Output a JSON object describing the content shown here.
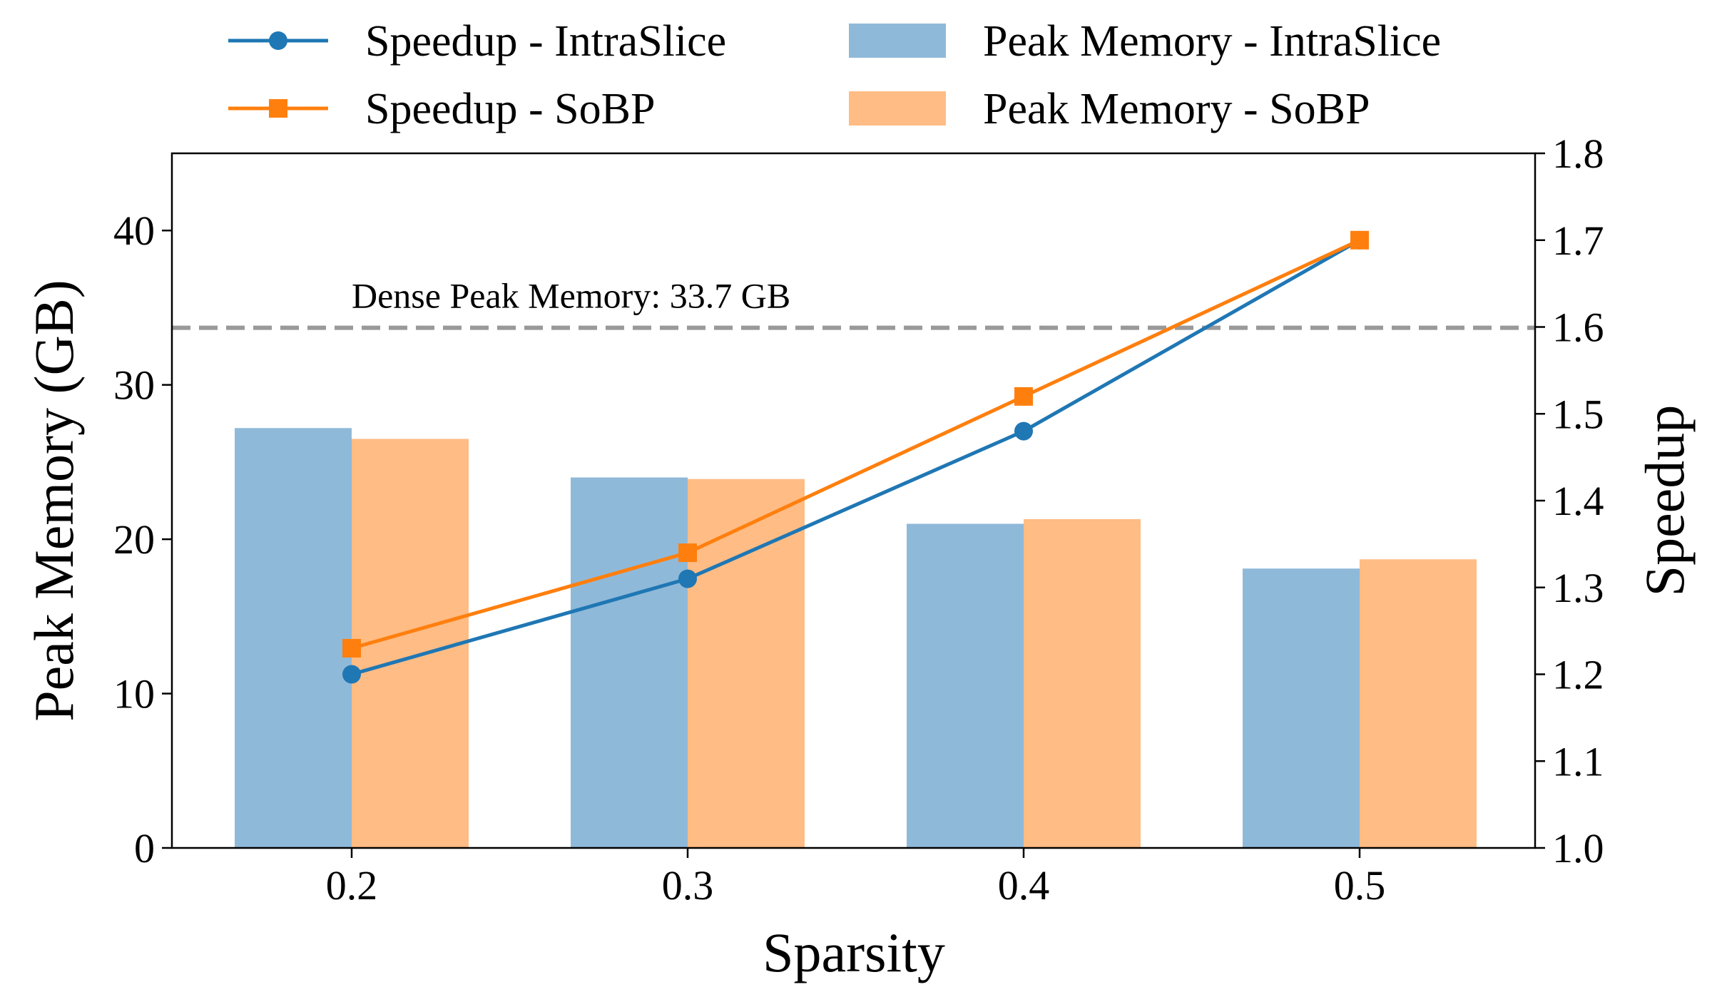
{
  "chart_data": {
    "type": "bar",
    "title": "",
    "xlabel": "Sparsity",
    "ylabel": "Peak Memory (GB)",
    "y2label": "Speedup",
    "categories": [
      "0.2",
      "0.3",
      "0.4",
      "0.5"
    ],
    "ylim": [
      0,
      45
    ],
    "y2lim": [
      1.0,
      1.8
    ],
    "yticks": [
      "0",
      "10",
      "20",
      "30",
      "40"
    ],
    "y2ticks": [
      "1.0",
      "1.1",
      "1.2",
      "1.3",
      "1.4",
      "1.5",
      "1.6",
      "1.7",
      "1.8"
    ],
    "bar_series": [
      {
        "name": "Peak Memory - IntraSlice",
        "color": "#8fb9d9",
        "values": [
          27.2,
          24.0,
          21.0,
          18.1
        ]
      },
      {
        "name": "Peak Memory - SoBP",
        "color": "#ffbc84",
        "values": [
          26.5,
          23.9,
          21.3,
          18.7
        ]
      }
    ],
    "line_series": [
      {
        "name": "Speedup - IntraSlice",
        "color": "#1f77b4",
        "marker": "circle",
        "values": [
          1.2,
          1.31,
          1.48,
          1.7
        ]
      },
      {
        "name": "Speedup - SoBP",
        "color": "#ff7f0e",
        "marker": "square",
        "values": [
          1.23,
          1.34,
          1.52,
          1.7
        ]
      }
    ],
    "reference_line": {
      "label": "Dense Peak Memory: 33.7 GB",
      "value": 33.7,
      "color": "#999999",
      "style": "dashed"
    },
    "legend": "top, above plot, two columns",
    "grid": false
  }
}
